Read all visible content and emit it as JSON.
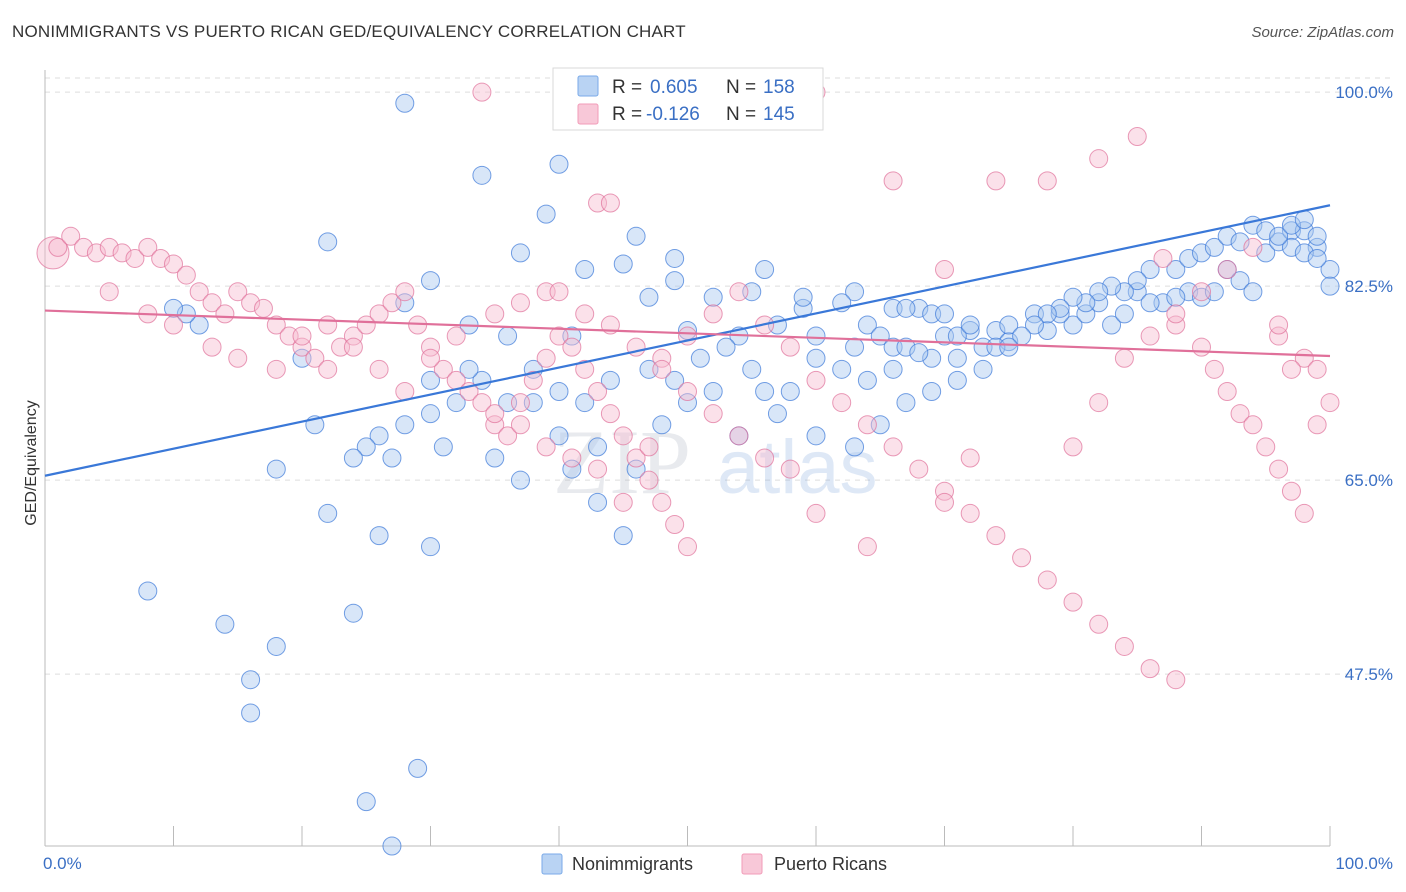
{
  "title": "NONIMMIGRANTS VS PUERTO RICAN GED/EQUIVALENCY CORRELATION CHART",
  "source": "Source: ZipAtlas.com",
  "watermark": {
    "zip": "ZIP",
    "atlas": "atlas"
  },
  "legend": {
    "r_label": "R =",
    "n_label": "N =",
    "rows": [
      {
        "r": "0.605",
        "n": "158",
        "color": "#7aaae8",
        "fill": "#b9d3f3"
      },
      {
        "r": "-0.126",
        "n": "145",
        "color": "#f29bb8",
        "fill": "#f8c8d8"
      }
    ]
  },
  "bottom_legend": [
    "Nonimmigrants",
    "Puerto Ricans"
  ],
  "chart_data": {
    "type": "scatter",
    "title": "NONIMMIGRANTS VS PUERTO RICAN GED/EQUIVALENCY CORRELATION CHART",
    "xlabel": "",
    "ylabel": "GED/Equivalency",
    "xlim": [
      0,
      100
    ],
    "ylim": [
      32,
      102
    ],
    "x_tick_labels": [
      "0.0%",
      "100.0%"
    ],
    "y_ticks": [
      {
        "value": 100,
        "label": "100.0%"
      },
      {
        "value": 82.5,
        "label": "82.5%"
      },
      {
        "value": 65,
        "label": "65.0%"
      },
      {
        "value": 47.5,
        "label": "47.5%"
      }
    ],
    "grid": true,
    "series": [
      {
        "name": "Nonimmigrants",
        "color": "#3a78d8",
        "fill": "#a9c7ef",
        "trend": {
          "x": [
            0,
            100
          ],
          "y": [
            65.4,
            89.8
          ]
        },
        "points": [
          [
            28,
            99
          ],
          [
            34,
            92.5
          ],
          [
            40,
            93.5
          ],
          [
            39,
            89
          ],
          [
            22,
            86.5
          ],
          [
            37,
            85.5
          ],
          [
            42,
            84
          ],
          [
            46,
            87
          ],
          [
            49,
            85
          ],
          [
            59,
            80.5
          ],
          [
            56,
            84
          ],
          [
            45,
            84.5
          ],
          [
            49,
            83
          ],
          [
            47,
            81.5
          ],
          [
            52,
            81.5
          ],
          [
            55,
            82
          ],
          [
            59,
            81.5
          ],
          [
            63,
            82
          ],
          [
            68,
            80.5
          ],
          [
            66,
            80.5
          ],
          [
            69,
            80
          ],
          [
            67,
            80.5
          ],
          [
            62,
            81
          ],
          [
            70,
            80
          ],
          [
            72,
            78.5
          ],
          [
            74,
            78.5
          ],
          [
            75,
            77.5
          ],
          [
            77,
            80
          ],
          [
            78,
            78.5
          ],
          [
            80,
            79
          ],
          [
            83,
            79
          ],
          [
            85,
            82
          ],
          [
            87,
            81
          ],
          [
            89,
            82
          ],
          [
            92,
            84
          ],
          [
            93,
            83
          ],
          [
            95,
            85.5
          ],
          [
            96,
            86.5
          ],
          [
            97,
            87.5
          ],
          [
            98,
            87.5
          ],
          [
            99,
            86
          ],
          [
            100,
            84
          ],
          [
            30,
            83
          ],
          [
            28,
            81
          ],
          [
            33,
            79
          ],
          [
            36,
            78
          ],
          [
            41,
            78
          ],
          [
            50,
            78.5
          ],
          [
            54,
            78
          ],
          [
            57,
            79
          ],
          [
            60,
            78
          ],
          [
            63,
            77
          ],
          [
            64,
            79
          ],
          [
            65,
            78
          ],
          [
            66,
            77
          ],
          [
            67,
            77
          ],
          [
            70,
            78
          ],
          [
            71,
            78
          ],
          [
            73,
            77
          ],
          [
            75,
            79
          ],
          [
            79,
            80
          ],
          [
            81,
            80
          ],
          [
            82,
            81
          ],
          [
            84,
            80
          ],
          [
            86,
            81
          ],
          [
            88,
            81.5
          ],
          [
            90,
            81.5
          ],
          [
            91,
            82
          ],
          [
            94,
            82
          ],
          [
            97,
            86
          ],
          [
            98,
            85.5
          ],
          [
            99,
            85
          ],
          [
            100,
            82.5
          ],
          [
            88,
            84
          ],
          [
            89,
            85
          ],
          [
            90,
            85.5
          ],
          [
            91,
            86
          ],
          [
            92,
            87
          ],
          [
            93,
            86.5
          ],
          [
            94,
            88
          ],
          [
            95,
            87.5
          ],
          [
            96,
            87
          ],
          [
            97,
            88
          ],
          [
            98,
            88.5
          ],
          [
            99,
            87
          ],
          [
            86,
            84
          ],
          [
            85,
            83
          ],
          [
            84,
            82
          ],
          [
            83,
            82.5
          ],
          [
            82,
            82
          ],
          [
            81,
            81
          ],
          [
            80,
            81.5
          ],
          [
            79,
            80.5
          ],
          [
            78,
            80
          ],
          [
            77,
            79
          ],
          [
            76,
            78
          ],
          [
            74,
            77
          ],
          [
            72,
            79
          ],
          [
            71,
            76
          ],
          [
            69,
            76
          ],
          [
            68,
            76.5
          ],
          [
            66,
            75
          ],
          [
            64,
            74
          ],
          [
            62,
            75
          ],
          [
            60,
            76
          ],
          [
            58,
            73
          ],
          [
            56,
            73
          ],
          [
            55,
            75
          ],
          [
            53,
            77
          ],
          [
            51,
            76
          ],
          [
            49,
            74
          ],
          [
            47,
            75
          ],
          [
            44,
            74
          ],
          [
            42,
            72
          ],
          [
            40,
            73
          ],
          [
            38,
            75
          ],
          [
            36,
            72
          ],
          [
            34,
            74
          ],
          [
            32,
            72
          ],
          [
            30,
            71
          ],
          [
            28,
            70
          ],
          [
            26,
            69
          ],
          [
            25,
            68
          ],
          [
            24,
            67
          ],
          [
            27,
            67
          ],
          [
            31,
            68
          ],
          [
            35,
            67
          ],
          [
            37,
            65
          ],
          [
            41,
            66
          ],
          [
            43,
            63
          ],
          [
            45,
            60
          ],
          [
            12,
            79
          ],
          [
            11,
            80
          ],
          [
            10,
            80.5
          ],
          [
            20,
            76
          ],
          [
            21,
            70
          ],
          [
            18,
            66
          ],
          [
            22,
            62
          ],
          [
            26,
            60
          ],
          [
            30,
            59
          ],
          [
            24,
            53
          ],
          [
            16,
            47
          ],
          [
            14,
            52
          ],
          [
            8,
            55
          ],
          [
            18,
            50
          ],
          [
            16,
            44
          ],
          [
            25,
            36
          ],
          [
            27,
            32
          ],
          [
            29,
            39
          ],
          [
            30,
            74
          ],
          [
            33,
            75
          ],
          [
            38,
            72
          ],
          [
            40,
            69
          ],
          [
            43,
            68
          ],
          [
            46,
            66
          ],
          [
            48,
            70
          ],
          [
            50,
            72
          ],
          [
            52,
            73
          ],
          [
            54,
            69
          ],
          [
            57,
            71
          ],
          [
            60,
            69
          ],
          [
            63,
            68
          ],
          [
            65,
            70
          ],
          [
            67,
            72
          ],
          [
            69,
            73
          ],
          [
            71,
            74
          ],
          [
            73,
            75
          ],
          [
            75,
            77
          ]
        ]
      },
      {
        "name": "Puerto Ricans",
        "color": "#e0709a",
        "fill": "#f6bcd0",
        "trend": {
          "x": [
            0,
            100
          ],
          "y": [
            80.3,
            76.2
          ]
        },
        "points": [
          [
            0,
            85.5
          ],
          [
            1,
            86
          ],
          [
            2,
            87
          ],
          [
            3,
            86
          ],
          [
            4,
            85.5
          ],
          [
            5,
            86
          ],
          [
            6,
            85.5
          ],
          [
            7,
            85
          ],
          [
            8,
            86
          ],
          [
            9,
            85
          ],
          [
            10,
            84.5
          ],
          [
            11,
            83.5
          ],
          [
            12,
            82
          ],
          [
            13,
            81
          ],
          [
            14,
            80
          ],
          [
            15,
            82
          ],
          [
            16,
            81
          ],
          [
            17,
            80.5
          ],
          [
            18,
            79
          ],
          [
            19,
            78
          ],
          [
            20,
            77
          ],
          [
            21,
            76
          ],
          [
            22,
            75
          ],
          [
            23,
            77
          ],
          [
            24,
            78
          ],
          [
            25,
            79
          ],
          [
            26,
            80
          ],
          [
            27,
            81
          ],
          [
            28,
            82
          ],
          [
            29,
            79
          ],
          [
            30,
            77
          ],
          [
            31,
            75
          ],
          [
            32,
            74
          ],
          [
            33,
            73
          ],
          [
            34,
            72
          ],
          [
            35,
            70
          ],
          [
            36,
            69
          ],
          [
            37,
            72
          ],
          [
            38,
            74
          ],
          [
            39,
            76
          ],
          [
            40,
            78
          ],
          [
            41,
            77
          ],
          [
            42,
            75
          ],
          [
            43,
            73
          ],
          [
            44,
            71
          ],
          [
            45,
            69
          ],
          [
            46,
            67
          ],
          [
            47,
            65
          ],
          [
            48,
            63
          ],
          [
            49,
            61
          ],
          [
            50,
            59
          ],
          [
            34,
            100
          ],
          [
            39,
            82
          ],
          [
            43,
            90
          ],
          [
            44,
            90
          ],
          [
            51,
            100
          ],
          [
            60,
            100
          ],
          [
            66,
            92
          ],
          [
            70,
            84
          ],
          [
            74,
            92
          ],
          [
            78,
            92
          ],
          [
            82,
            94
          ],
          [
            85,
            96
          ],
          [
            87,
            85
          ],
          [
            88,
            79
          ],
          [
            90,
            77
          ],
          [
            91,
            75
          ],
          [
            92,
            73
          ],
          [
            93,
            71
          ],
          [
            94,
            70
          ],
          [
            95,
            68
          ],
          [
            96,
            66
          ],
          [
            97,
            64
          ],
          [
            98,
            62
          ],
          [
            99,
            70
          ],
          [
            100,
            72
          ],
          [
            5,
            82
          ],
          [
            8,
            80
          ],
          [
            10,
            79
          ],
          [
            13,
            77
          ],
          [
            15,
            76
          ],
          [
            18,
            75
          ],
          [
            20,
            78
          ],
          [
            22,
            79
          ],
          [
            24,
            77
          ],
          [
            26,
            75
          ],
          [
            28,
            73
          ],
          [
            30,
            76
          ],
          [
            32,
            78
          ],
          [
            35,
            80
          ],
          [
            37,
            81
          ],
          [
            40,
            82
          ],
          [
            42,
            80
          ],
          [
            44,
            79
          ],
          [
            46,
            77
          ],
          [
            48,
            76
          ],
          [
            50,
            78
          ],
          [
            52,
            80
          ],
          [
            54,
            82
          ],
          [
            56,
            79
          ],
          [
            58,
            77
          ],
          [
            60,
            74
          ],
          [
            62,
            72
          ],
          [
            64,
            70
          ],
          [
            66,
            68
          ],
          [
            68,
            66
          ],
          [
            70,
            64
          ],
          [
            72,
            62
          ],
          [
            74,
            60
          ],
          [
            76,
            58
          ],
          [
            78,
            56
          ],
          [
            80,
            54
          ],
          [
            82,
            52
          ],
          [
            84,
            50
          ],
          [
            86,
            48
          ],
          [
            88,
            47
          ],
          [
            60,
            62
          ],
          [
            64,
            59
          ],
          [
            70,
            63
          ],
          [
            72,
            67
          ],
          [
            80,
            68
          ],
          [
            82,
            72
          ],
          [
            84,
            76
          ],
          [
            86,
            78
          ],
          [
            88,
            80
          ],
          [
            90,
            82
          ],
          [
            92,
            84
          ],
          [
            94,
            86
          ],
          [
            96,
            78
          ],
          [
            98,
            76
          ],
          [
            96,
            79
          ],
          [
            97,
            75
          ],
          [
            99,
            75
          ],
          [
            58,
            66
          ],
          [
            56,
            67
          ],
          [
            54,
            69
          ],
          [
            52,
            71
          ],
          [
            50,
            73
          ],
          [
            48,
            75
          ],
          [
            47,
            68
          ],
          [
            45,
            63
          ],
          [
            43,
            66
          ],
          [
            41,
            67
          ],
          [
            39,
            68
          ],
          [
            37,
            70
          ],
          [
            35,
            71
          ]
        ]
      }
    ]
  }
}
